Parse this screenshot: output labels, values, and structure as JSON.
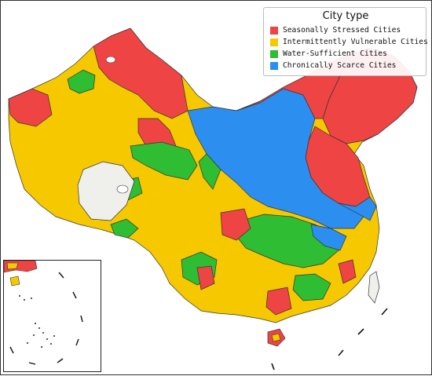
{
  "legend": {
    "title": "City type",
    "items": [
      {
        "label": "Seasonally Stressed Cities",
        "color": "#ee4444"
      },
      {
        "label": "Intermittently Vulnerable Cities",
        "color": "#f5c800"
      },
      {
        "label": "Water-Sufficient Cities",
        "color": "#2ebd33"
      },
      {
        "label": "Chronically Scarce Cities",
        "color": "#2c8fef"
      }
    ]
  },
  "colors": {
    "no_data": "#efefec",
    "border": "#333333",
    "water": "#ffffff"
  }
}
